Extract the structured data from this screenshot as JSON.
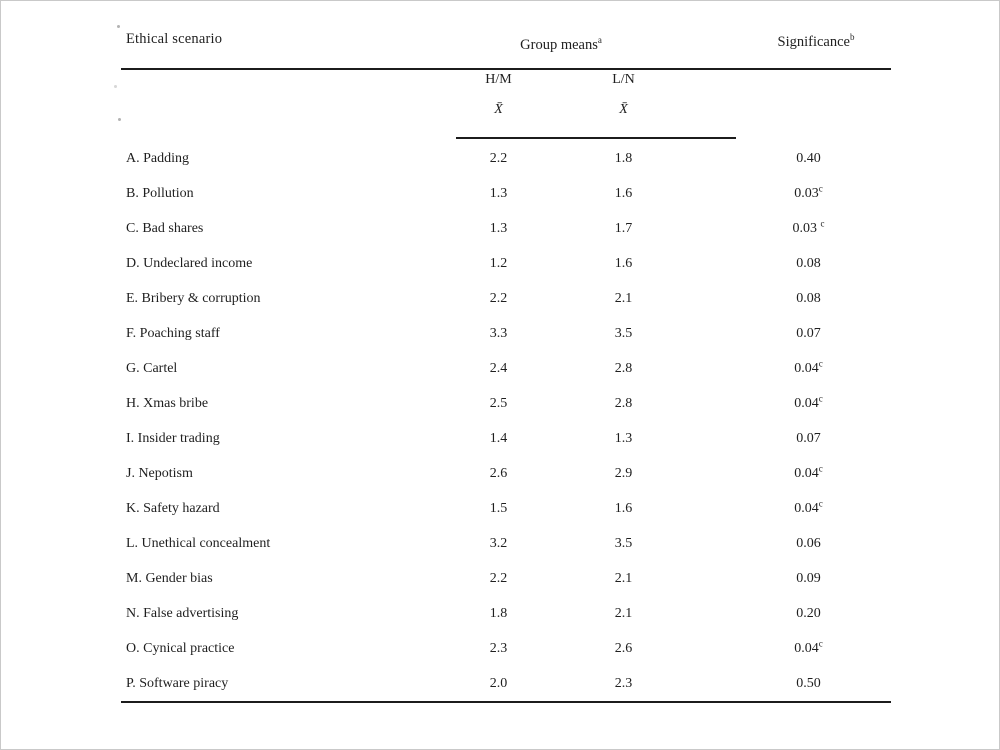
{
  "page": {
    "background": "#ffffff",
    "border_color": "#c9c9c9",
    "text_color": "#1f1f1f",
    "rule_color": "#1c1c1c"
  },
  "table": {
    "col1_header": "Ethical scenario",
    "group_means_header": "Group means",
    "group_means_sup": "a",
    "significance_header": "Significance",
    "significance_sup": "b",
    "subcol_hm": "H/M",
    "subcol_ln": "L/N",
    "mean_symbol": "X̄",
    "rows": [
      {
        "label": "A. Padding",
        "hm": "2.2",
        "ln": "1.8",
        "sig": "0.40",
        "sig_sup": ""
      },
      {
        "label": "B. Pollution",
        "hm": "1.3",
        "ln": "1.6",
        "sig": "0.03",
        "sig_sup": "c"
      },
      {
        "label": "C. Bad shares",
        "hm": "1.3",
        "ln": "1.7",
        "sig": "0.03 ",
        "sig_sup": "c"
      },
      {
        "label": "D. Undeclared income",
        "hm": "1.2",
        "ln": "1.6",
        "sig": "0.08",
        "sig_sup": ""
      },
      {
        "label": "E. Bribery & corruption",
        "hm": "2.2",
        "ln": "2.1",
        "sig": "0.08",
        "sig_sup": ""
      },
      {
        "label": "F. Poaching staff",
        "hm": "3.3",
        "ln": "3.5",
        "sig": "0.07",
        "sig_sup": ""
      },
      {
        "label": "G. Cartel",
        "hm": "2.4",
        "ln": "2.8",
        "sig": "0.04",
        "sig_sup": "c"
      },
      {
        "label": "H. Xmas bribe",
        "hm": "2.5",
        "ln": "2.8",
        "sig": "0.04",
        "sig_sup": "c"
      },
      {
        "label": "I.  Insider trading",
        "hm": "1.4",
        "ln": "1.3",
        "sig": "0.07",
        "sig_sup": ""
      },
      {
        "label": "J.  Nepotism",
        "hm": "2.6",
        "ln": "2.9",
        "sig": "0.04",
        "sig_sup": "c"
      },
      {
        "label": "K. Safety hazard",
        "hm": "1.5",
        "ln": "1.6",
        "sig": "0.04",
        "sig_sup": "c"
      },
      {
        "label": "L. Unethical concealment",
        "hm": "3.2",
        "ln": "3.5",
        "sig": "0.06",
        "sig_sup": ""
      },
      {
        "label": "M. Gender bias",
        "hm": "2.2",
        "ln": "2.1",
        "sig": "0.09",
        "sig_sup": ""
      },
      {
        "label": "N. False advertising",
        "hm": "1.8",
        "ln": "2.1",
        "sig": "0.20",
        "sig_sup": ""
      },
      {
        "label": "O. Cynical practice",
        "hm": "2.3",
        "ln": "2.6",
        "sig": "0.04",
        "sig_sup": "c"
      },
      {
        "label": "P.  Software piracy",
        "hm": "2.0",
        "ln": "2.3",
        "sig": "0.50",
        "sig_sup": ""
      }
    ]
  }
}
